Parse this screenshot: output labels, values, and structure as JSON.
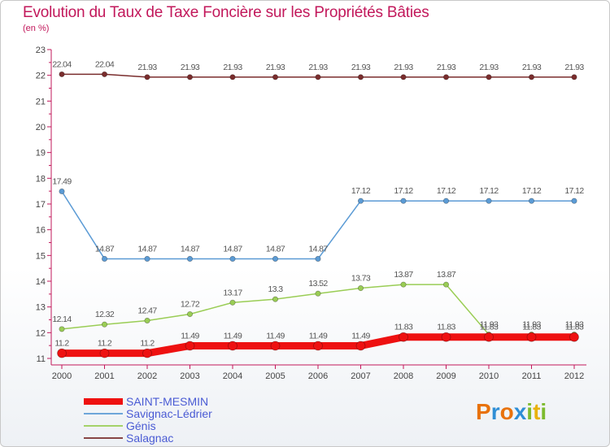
{
  "title": "Evolution du Taux de Taxe Foncière sur les Propriétés Bâties",
  "subtitle": "(en %)",
  "logo": {
    "text": "Proxiti",
    "letters": [
      {
        "ch": "P",
        "color": "#e8720c"
      },
      {
        "ch": "r",
        "color": "#2f8ed6"
      },
      {
        "ch": "o",
        "color": "#e8720c"
      },
      {
        "ch": "x",
        "color": "#2f8ed6"
      },
      {
        "ch": "i",
        "color": "#7dbb2e"
      },
      {
        "ch": "t",
        "color": "#e8b10c"
      },
      {
        "ch": "i",
        "color": "#7dbb2e"
      }
    ]
  },
  "chart_data": {
    "type": "line",
    "title": "Evolution du Taux de Taxe Foncière sur les Propriétés Bâties",
    "ylabel": "(en %)",
    "xlabel": "",
    "x": [
      "2000",
      "2001",
      "2002",
      "2003",
      "2004",
      "2005",
      "2006",
      "2007",
      "2008",
      "2009",
      "2010",
      "2011",
      "2012"
    ],
    "ylim": [
      11,
      23
    ],
    "yticks": [
      11,
      12,
      13,
      14,
      15,
      16,
      17,
      18,
      19,
      20,
      21,
      22,
      23
    ],
    "grid": false,
    "legend_position": "bottom-left",
    "series": [
      {
        "name": "Salagnac",
        "color": "#7a2d2d",
        "values": [
          22.04,
          22.04,
          21.93,
          21.93,
          21.93,
          21.93,
          21.93,
          21.93,
          21.93,
          21.93,
          21.93,
          21.93,
          21.93
        ],
        "labels": [
          "22.04",
          "22.04",
          "21.93",
          "21.93",
          "21.93",
          "21.93",
          "21.93",
          "21.93",
          "21.93",
          "21.93",
          "21.93",
          "21.93",
          "21.93"
        ]
      },
      {
        "name": "Savignac-Lédrier",
        "color": "#5b9bd5",
        "values": [
          17.49,
          14.87,
          14.87,
          14.87,
          14.87,
          14.87,
          14.87,
          17.12,
          17.12,
          17.12,
          17.12,
          17.12,
          17.12
        ],
        "labels": [
          "17.49",
          "14.87",
          "14.87",
          "14.87",
          "14.87",
          "14.87",
          "14.87",
          "17.12",
          "17.12",
          "17.12",
          "17.12",
          "17.12",
          "17.12"
        ]
      },
      {
        "name": "Génis",
        "color": "#9acd55",
        "values": [
          12.14,
          12.32,
          12.47,
          12.72,
          13.17,
          13.3,
          13.52,
          13.73,
          13.87,
          13.87,
          11.93,
          11.93,
          11.93
        ],
        "labels": [
          "12.14",
          "12.32",
          "12.47",
          "12.72",
          "13.17",
          "13.3",
          "13.52",
          "13.73",
          "13.87",
          "13.87",
          "11.93",
          "11.93",
          "11.93"
        ]
      },
      {
        "name": "SAINT-MESMIN",
        "color": "#ee1111",
        "values": [
          11.2,
          11.2,
          11.2,
          11.49,
          11.49,
          11.49,
          11.49,
          11.49,
          11.83,
          11.83,
          11.83,
          11.83,
          11.83
        ],
        "labels": [
          "11.2",
          "11.2",
          "11.2",
          "11.49",
          "11.49",
          "11.49",
          "11.49",
          "11.49",
          "11.83",
          "11.83",
          "11.83",
          "11.83",
          "11.83"
        ]
      }
    ],
    "legend": [
      "SAINT-MESMIN",
      "Savignac-Lédrier",
      "Génis",
      "Salagnac"
    ]
  }
}
